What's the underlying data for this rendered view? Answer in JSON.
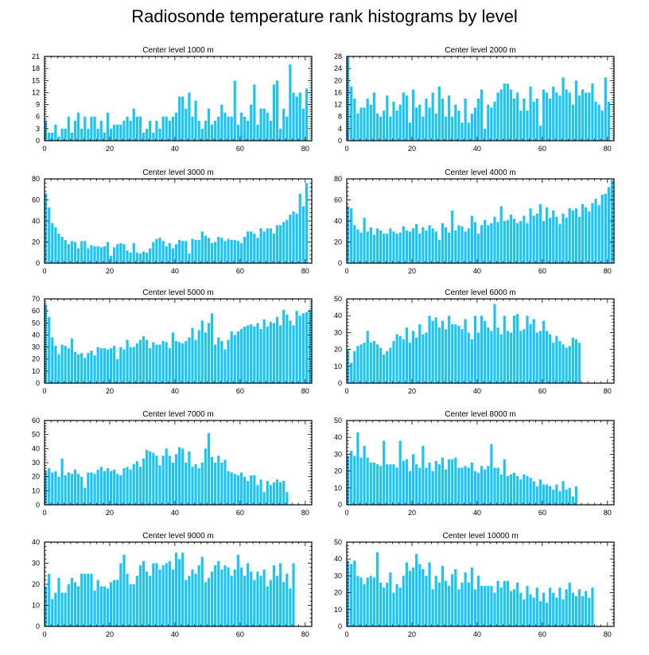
{
  "title": "Radiosonde temperature rank histograms by level",
  "bar_color": "#1cc4f6",
  "chart_data": [
    {
      "type": "bar",
      "title": "Center level 1000 m",
      "xlim": [
        0,
        82
      ],
      "ylim": [
        0,
        21
      ],
      "xticks": [
        0,
        20,
        40,
        60,
        80
      ],
      "yticks": [
        0,
        3,
        6,
        9,
        12,
        15,
        18,
        21
      ],
      "values": [
        5,
        2,
        2,
        4,
        1,
        3,
        3,
        6,
        2,
        5,
        7,
        3,
        6,
        3,
        6,
        6,
        3,
        5,
        2,
        7,
        3,
        4,
        4,
        4,
        5,
        6,
        5,
        8,
        6,
        6,
        2,
        3,
        5,
        2,
        5,
        3,
        6,
        6,
        5,
        6,
        7,
        11,
        11,
        8,
        12,
        6,
        10,
        5,
        3,
        5,
        8,
        4,
        5,
        6,
        9,
        7,
        6,
        6,
        15,
        4,
        7,
        6,
        5,
        9,
        14,
        4,
        8,
        8,
        7,
        5,
        14,
        15,
        3,
        8,
        6,
        19,
        12,
        11,
        12,
        8,
        13
      ]
    },
    {
      "type": "bar",
      "title": "Center level 2000 m",
      "xlim": [
        0,
        82
      ],
      "ylim": [
        0,
        28
      ],
      "xticks": [
        0,
        20,
        40,
        60,
        80
      ],
      "yticks": [
        0,
        4,
        8,
        12,
        16,
        20,
        24,
        28
      ],
      "values": [
        28,
        18,
        14,
        9,
        11,
        11,
        14,
        12,
        16,
        9,
        8,
        10,
        15,
        8,
        13,
        10,
        12,
        16,
        15,
        6,
        17,
        11,
        12,
        8,
        14,
        11,
        16,
        9,
        18,
        14,
        8,
        15,
        8,
        12,
        10,
        6,
        14,
        6,
        9,
        11,
        14,
        17,
        4,
        12,
        11,
        13,
        16,
        17,
        19,
        19,
        17,
        14,
        16,
        10,
        14,
        10,
        18,
        13,
        14,
        5,
        17,
        16,
        14,
        18,
        16,
        15,
        21,
        17,
        16,
        12,
        20,
        15,
        17,
        16,
        16,
        19,
        13,
        12,
        10,
        21,
        13
      ]
    },
    {
      "type": "bar",
      "title": "Center level 3000 m",
      "xlim": [
        0,
        82
      ],
      "ylim": [
        0,
        80
      ],
      "xticks": [
        0,
        20,
        40,
        60,
        80
      ],
      "yticks": [
        0,
        20,
        40,
        60,
        80
      ],
      "values": [
        66,
        53,
        38,
        34,
        28,
        25,
        22,
        18,
        21,
        20,
        14,
        21,
        21,
        14,
        17,
        16,
        16,
        15,
        16,
        20,
        7,
        15,
        18,
        19,
        18,
        12,
        10,
        19,
        10,
        9,
        11,
        10,
        14,
        20,
        23,
        24,
        21,
        16,
        19,
        14,
        18,
        22,
        21,
        21,
        9,
        23,
        22,
        22,
        30,
        26,
        24,
        19,
        20,
        25,
        24,
        21,
        23,
        22,
        22,
        21,
        19,
        25,
        30,
        30,
        28,
        24,
        33,
        30,
        33,
        33,
        28,
        36,
        36,
        39,
        41,
        46,
        49,
        47,
        66,
        54,
        76
      ]
    },
    {
      "type": "bar",
      "title": "Center level 4000 m",
      "xlim": [
        0,
        82
      ],
      "ylim": [
        0,
        80
      ],
      "xticks": [
        0,
        20,
        40,
        60,
        80
      ],
      "yticks": [
        0,
        20,
        40,
        60,
        80
      ],
      "values": [
        54,
        52,
        36,
        32,
        29,
        43,
        30,
        34,
        27,
        33,
        31,
        28,
        28,
        33,
        30,
        28,
        29,
        35,
        31,
        30,
        33,
        37,
        28,
        34,
        31,
        36,
        33,
        30,
        22,
        38,
        34,
        29,
        50,
        31,
        36,
        35,
        30,
        33,
        45,
        39,
        28,
        36,
        41,
        36,
        38,
        44,
        39,
        54,
        40,
        41,
        46,
        42,
        38,
        40,
        45,
        38,
        52,
        45,
        47,
        56,
        40,
        53,
        43,
        50,
        44,
        37,
        47,
        43,
        52,
        50,
        52,
        44,
        56,
        53,
        49,
        57,
        61,
        55,
        65,
        66,
        72,
        79
      ]
    },
    {
      "type": "bar",
      "title": "Center level 5000 m",
      "xlim": [
        0,
        82
      ],
      "ylim": [
        0,
        70
      ],
      "xticks": [
        0,
        20,
        40,
        60,
        80
      ],
      "yticks": [
        0,
        10,
        20,
        30,
        40,
        50,
        60,
        70
      ],
      "values": [
        65,
        55,
        38,
        31,
        24,
        32,
        31,
        29,
        37,
        26,
        24,
        25,
        21,
        25,
        27,
        23,
        30,
        29,
        29,
        28,
        29,
        31,
        20,
        30,
        28,
        36,
        30,
        30,
        33,
        36,
        39,
        36,
        29,
        34,
        32,
        32,
        35,
        34,
        29,
        42,
        35,
        34,
        33,
        35,
        38,
        46,
        36,
        44,
        52,
        42,
        50,
        58,
        32,
        38,
        35,
        28,
        36,
        43,
        40,
        43,
        45,
        47,
        48,
        49,
        47,
        50,
        45,
        53,
        47,
        51,
        50,
        55,
        48,
        61,
        57,
        52,
        48,
        60,
        56,
        58,
        59,
        61
      ]
    },
    {
      "type": "bar",
      "title": "Center level 6000 m",
      "xlim": [
        0,
        82
      ],
      "ylim": [
        0,
        50
      ],
      "xticks": [
        0,
        20,
        40,
        60,
        80
      ],
      "yticks": [
        0,
        10,
        20,
        30,
        40,
        50
      ],
      "values": [
        20,
        12,
        19,
        22,
        23,
        24,
        31,
        24,
        25,
        23,
        21,
        17,
        19,
        21,
        25,
        29,
        28,
        26,
        33,
        24,
        31,
        27,
        35,
        29,
        30,
        40,
        37,
        39,
        33,
        37,
        32,
        40,
        35,
        35,
        34,
        32,
        38,
        30,
        26,
        40,
        30,
        40,
        37,
        33,
        31,
        47,
        33,
        29,
        40,
        31,
        30,
        40,
        41,
        31,
        32,
        40,
        35,
        38,
        30,
        31,
        37,
        31,
        29,
        24,
        28,
        25,
        23,
        21,
        22,
        27,
        26,
        24
      ]
    },
    {
      "type": "bar",
      "title": "Center level 7000 m",
      "xlim": [
        0,
        82
      ],
      "ylim": [
        0,
        60
      ],
      "xticks": [
        0,
        20,
        40,
        60,
        80
      ],
      "yticks": [
        0,
        10,
        20,
        30,
        40,
        50,
        60
      ],
      "values": [
        24,
        26,
        23,
        24,
        20,
        33,
        21,
        23,
        22,
        25,
        22,
        20,
        12,
        23,
        23,
        22,
        25,
        27,
        24,
        26,
        24,
        25,
        22,
        21,
        26,
        27,
        25,
        29,
        31,
        27,
        33,
        39,
        38,
        37,
        35,
        28,
        35,
        40,
        35,
        30,
        36,
        41,
        40,
        30,
        38,
        27,
        29,
        26,
        30,
        40,
        51,
        34,
        30,
        35,
        30,
        32,
        24,
        23,
        22,
        21,
        23,
        20,
        17,
        21,
        21,
        14,
        18,
        9,
        17,
        14,
        16,
        18,
        16,
        17,
        9
      ]
    },
    {
      "type": "bar",
      "title": "Center level 8000 m",
      "xlim": [
        0,
        82
      ],
      "ylim": [
        0,
        50
      ],
      "xticks": [
        0,
        20,
        40,
        60,
        80
      ],
      "yticks": [
        0,
        10,
        20,
        30,
        40,
        50
      ],
      "values": [
        29,
        32,
        29,
        43,
        28,
        35,
        28,
        25,
        25,
        24,
        23,
        38,
        24,
        24,
        24,
        22,
        38,
        26,
        27,
        20,
        30,
        24,
        22,
        35,
        22,
        25,
        20,
        26,
        24,
        28,
        21,
        27,
        27,
        28,
        22,
        22,
        23,
        22,
        25,
        20,
        19,
        23,
        21,
        23,
        36,
        22,
        22,
        18,
        27,
        17,
        18,
        19,
        17,
        15,
        18,
        17,
        16,
        14,
        11,
        15,
        12,
        12,
        11,
        9,
        12,
        8,
        14,
        9,
        10,
        5,
        11
      ]
    },
    {
      "type": "bar",
      "title": "Center level 9000 m",
      "xlim": [
        0,
        82
      ],
      "ylim": [
        0,
        40
      ],
      "xticks": [
        0,
        20,
        40,
        60,
        80
      ],
      "yticks": [
        0,
        10,
        20,
        30,
        40
      ],
      "values": [
        19,
        25,
        13,
        16,
        23,
        16,
        16,
        20,
        23,
        21,
        19,
        25,
        25,
        25,
        25,
        17,
        22,
        19,
        19,
        18,
        21,
        22,
        22,
        30,
        34,
        25,
        20,
        20,
        24,
        29,
        31,
        26,
        24,
        30,
        30,
        27,
        29,
        30,
        31,
        27,
        35,
        32,
        35,
        22,
        24,
        27,
        25,
        29,
        33,
        21,
        23,
        26,
        29,
        31,
        27,
        29,
        28,
        24,
        27,
        34,
        28,
        24,
        30,
        26,
        22,
        26,
        24,
        27,
        19,
        22,
        29,
        24,
        30,
        21,
        25,
        18,
        30
      ]
    },
    {
      "type": "bar",
      "title": "Center level 10000 m",
      "xlim": [
        0,
        82
      ],
      "ylim": [
        0,
        50
      ],
      "xticks": [
        0,
        20,
        40,
        60,
        80
      ],
      "yticks": [
        0,
        10,
        20,
        30,
        40,
        50
      ],
      "values": [
        39,
        37,
        39,
        30,
        29,
        25,
        29,
        30,
        29,
        44,
        26,
        23,
        26,
        32,
        20,
        25,
        23,
        30,
        38,
        33,
        35,
        43,
        37,
        34,
        30,
        38,
        22,
        30,
        26,
        36,
        27,
        24,
        31,
        34,
        22,
        26,
        32,
        26,
        35,
        22,
        30,
        24,
        24,
        24,
        24,
        20,
        27,
        23,
        27,
        27,
        21,
        22,
        26,
        20,
        16,
        24,
        19,
        17,
        23,
        15,
        20,
        14,
        23,
        20,
        17,
        23,
        16,
        22,
        26,
        20,
        18,
        22,
        18,
        21,
        17,
        23
      ]
    }
  ]
}
